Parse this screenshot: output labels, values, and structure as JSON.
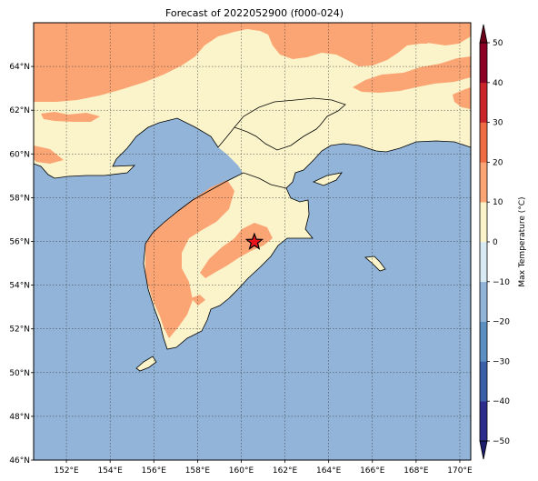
{
  "title": "Forecast of 2022052900 (f000-024)",
  "colors": {
    "ocean": "#91b4d8",
    "land_0_10": "#fbf4cb",
    "land_10_20": "#fca574",
    "outline": "#000000",
    "star": "#e8141c"
  },
  "map": {
    "lon_range": [
      150.5,
      170.5
    ],
    "lat_range": [
      46,
      66
    ],
    "lon_ticks": [
      "152°E",
      "154°E",
      "156°E",
      "158°E",
      "160°E",
      "162°E",
      "164°E",
      "166°E",
      "168°E",
      "170°E"
    ],
    "lon_tick_values": [
      152,
      154,
      156,
      158,
      160,
      162,
      164,
      166,
      168,
      170
    ],
    "lat_ticks": [
      "46°N",
      "48°N",
      "50°N",
      "52°N",
      "54°N",
      "56°N",
      "58°N",
      "60°N",
      "62°N",
      "64°N"
    ],
    "lat_tick_values": [
      46,
      48,
      50,
      52,
      54,
      56,
      58,
      60,
      62,
      64
    ],
    "marker": {
      "symbol": "star-icon",
      "lon": 160.6,
      "lat": 55.97
    }
  },
  "colorbar": {
    "label": "Max Temperature (°C)",
    "levels": [
      -50,
      -40,
      -30,
      -20,
      -10,
      0,
      10,
      20,
      30,
      40,
      50
    ],
    "tick_labels": [
      "−50",
      "−40",
      "−30",
      "−20",
      "−10",
      "0",
      "10",
      "20",
      "30",
      "40",
      "50"
    ],
    "colors": [
      "#2b2c8c",
      "#3b5ea8",
      "#5b8fc2",
      "#91b4d8",
      "#d8ebf4",
      "#fbf4cb",
      "#fca574",
      "#f06d44",
      "#c9252b",
      "#8c0025"
    ],
    "under_color": "#1d1e6e",
    "over_color": "#6b0019"
  }
}
